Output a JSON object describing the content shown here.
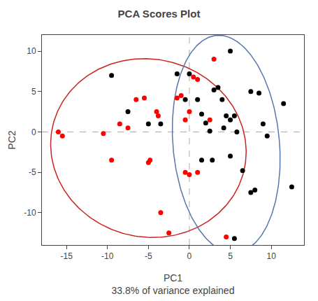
{
  "chart_data": {
    "type": "scatter",
    "title": "PCA Scores Plot",
    "xlabel": "PC1",
    "xlabel_subtitle": "33.8% of variance explained",
    "ylabel": "PC2",
    "xlim": [
      -18,
      14
    ],
    "ylim": [
      -14,
      12
    ],
    "xticks": [
      -15,
      -10,
      -5,
      0,
      5,
      10
    ],
    "yticks": [
      -10,
      -5,
      0,
      5,
      10
    ],
    "grid": false,
    "marker": "circle",
    "series": [
      {
        "color": "black",
        "x": [
          -9.5,
          -7.5,
          -5.0,
          -3.5,
          -1.5,
          -0.5,
          0.0,
          1.0,
          1.5,
          2.0,
          2.5,
          1.5,
          2.8,
          3.0,
          3.5,
          4.0,
          4.5,
          5.0,
          5.5,
          4.2,
          5.8,
          5.0,
          6.5,
          7.5,
          8.5,
          9.0,
          9.5,
          7.5,
          8.0,
          11.5,
          12.5,
          5.0,
          5.5
        ],
        "y": [
          7.0,
          2.5,
          1.0,
          1.0,
          7.2,
          4.0,
          7.2,
          4.0,
          2.2,
          1.1,
          0.1,
          -3.5,
          -3.5,
          5.2,
          5.5,
          4.0,
          2.0,
          1.5,
          2.0,
          0.5,
          0.0,
          -3.0,
          -4.8,
          5.0,
          4.8,
          1.0,
          -0.5,
          -7.5,
          -7.2,
          3.5,
          -6.8,
          10.0,
          -13.2
        ]
      },
      {
        "color": "red",
        "x": [
          -16.0,
          -15.5,
          -10.5,
          -9.5,
          -8.5,
          -7.5,
          -6.5,
          -5.5,
          -5.0,
          -4.8,
          -4.0,
          -3.8,
          -3.5,
          -2.5,
          -1.5,
          -1.0,
          -0.5,
          0.0,
          -0.5,
          0.0,
          0.5,
          1.0,
          1.0,
          3.0,
          4.5,
          2.5
        ],
        "y": [
          0.0,
          -0.5,
          -0.2,
          -3.5,
          1.0,
          0.5,
          4.0,
          4.2,
          -3.8,
          -3.5,
          2.5,
          2.0,
          -10.0,
          -12.5,
          4.2,
          4.5,
          1.5,
          2.5,
          -5.0,
          -5.3,
          6.8,
          6.5,
          -5.0,
          9.0,
          -13.0,
          1.5
        ]
      }
    ],
    "ellipses": [
      {
        "center_x": -5.0,
        "center_y": -2.0,
        "width": 24,
        "height": 22,
        "angle": -15,
        "color": "#CC2222"
      },
      {
        "center_x": 4.5,
        "center_y": -1.5,
        "width": 13,
        "height": 27,
        "angle": 5,
        "color": "#5577AA"
      }
    ],
    "reference_lines": {
      "x": [
        0
      ],
      "y": [
        0
      ],
      "color": "#aaaaaa",
      "line_style": "dash"
    }
  }
}
